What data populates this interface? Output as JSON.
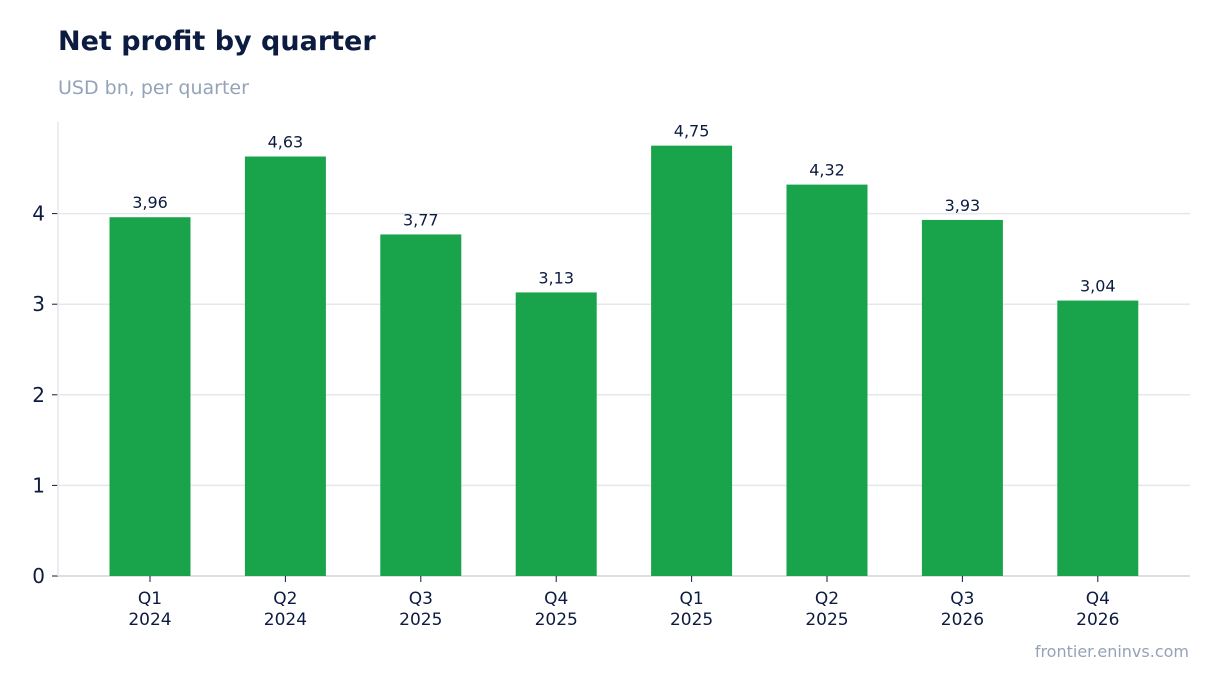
{
  "header": {
    "title": "Net profit by quarter",
    "subtitle": "USD bn, per quarter"
  },
  "footer": {
    "source": "frontier.eninvs.com"
  },
  "colors": {
    "bar": "#19a34a",
    "grid": "#e5e7eb",
    "axis": "#d1d5db",
    "text": "#0c1b40",
    "muted": "#94a3b8"
  },
  "chart_data": {
    "type": "bar",
    "title": "Net profit by quarter",
    "subtitle": "USD bn, per quarter",
    "categories": [
      [
        "Q1",
        "2024"
      ],
      [
        "Q2",
        "2024"
      ],
      [
        "Q3",
        "2025"
      ],
      [
        "Q4",
        "2025"
      ],
      [
        "Q1",
        "2025"
      ],
      [
        "Q2",
        "2025"
      ],
      [
        "Q3",
        "2026"
      ],
      [
        "Q4",
        "2026"
      ]
    ],
    "values": [
      3.96,
      4.63,
      3.77,
      3.13,
      4.75,
      4.32,
      3.93,
      3.04
    ],
    "data_labels": [
      "3,96",
      "4,63",
      "3,77",
      "3,13",
      "4,75",
      "4,32",
      "3,93",
      "3,04"
    ],
    "yticks": [
      0,
      1,
      2,
      3,
      4
    ],
    "ylim": [
      0,
      5
    ],
    "xlabel": "",
    "ylabel": "",
    "grid": true,
    "legend": false
  }
}
